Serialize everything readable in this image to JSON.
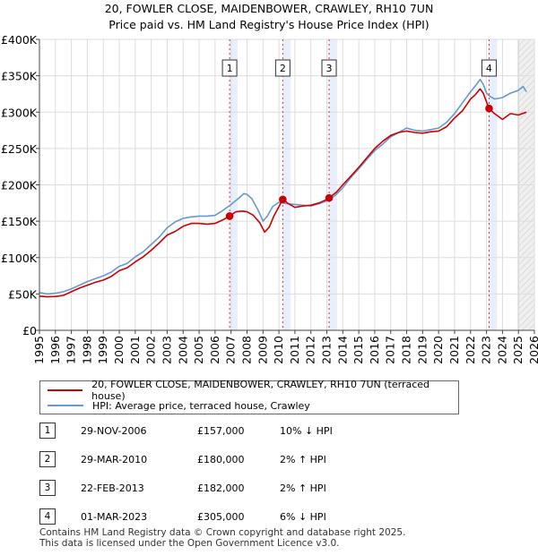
{
  "title_line1": "20, FOWLER CLOSE, MAIDENBOWER, CRAWLEY, RH10 7UN",
  "title_line2": "Price paid vs. HM Land Registry's House Price Index (HPI)",
  "colors": {
    "price": "#cc0000",
    "hpi": "#6699cc",
    "sale_band": "#e8eefc",
    "future": "#f0f0f0"
  },
  "chart_data": {
    "type": "line",
    "title": "20, FOWLER CLOSE, MAIDENBOWER, CRAWLEY, RH10 7UN",
    "subtitle": "Price paid vs. HM Land Registry's House Price Index (HPI)",
    "xlabel": "",
    "ylabel": "",
    "xlim": [
      1995,
      2026
    ],
    "ylim": [
      0,
      400000
    ],
    "x_ticks": [
      "1995",
      "1996",
      "1997",
      "1998",
      "1999",
      "2000",
      "2001",
      "2002",
      "2003",
      "2004",
      "2005",
      "2006",
      "2007",
      "2008",
      "2009",
      "2010",
      "2011",
      "2012",
      "2013",
      "2014",
      "2015",
      "2016",
      "2017",
      "2018",
      "2019",
      "2020",
      "2021",
      "2022",
      "2023",
      "2024",
      "2025",
      "2026"
    ],
    "y_ticks": [
      {
        "value": 0,
        "label": "£0"
      },
      {
        "value": 50000,
        "label": "£50K"
      },
      {
        "value": 100000,
        "label": "£100K"
      },
      {
        "value": 150000,
        "label": "£150K"
      },
      {
        "value": 200000,
        "label": "£200K"
      },
      {
        "value": 250000,
        "label": "£250K"
      },
      {
        "value": 300000,
        "label": "£300K"
      },
      {
        "value": 350000,
        "label": "£350K"
      },
      {
        "value": 400000,
        "label": "£400K"
      }
    ],
    "grid": true,
    "future_shade_from": 2025.0,
    "sale_band_width_years": 0.5,
    "series": [
      {
        "name": "20, FOWLER CLOSE, MAIDENBOWER, CRAWLEY, RH10 7UN (terraced house)",
        "color_key": "price",
        "x": [
          1995.0,
          1995.5,
          1996.0,
          1996.5,
          1997.0,
          1997.5,
          1998.0,
          1998.5,
          1999.0,
          1999.5,
          2000.0,
          2000.5,
          2001.0,
          2001.5,
          2002.0,
          2002.5,
          2003.0,
          2003.5,
          2004.0,
          2004.5,
          2005.0,
          2005.5,
          2006.0,
          2006.5,
          2006.91,
          2007.3,
          2007.7,
          2008.0,
          2008.4,
          2008.8,
          2009.1,
          2009.4,
          2009.7,
          2010.0,
          2010.24,
          2010.6,
          2011.0,
          2011.5,
          2012.0,
          2012.5,
          2013.0,
          2013.14,
          2013.6,
          2014.0,
          2014.5,
          2015.0,
          2015.5,
          2016.0,
          2016.5,
          2017.0,
          2017.5,
          2018.0,
          2018.5,
          2019.0,
          2019.5,
          2020.0,
          2020.5,
          2021.0,
          2021.5,
          2022.0,
          2022.3,
          2022.6,
          2022.8,
          2023.0,
          2023.16,
          2023.5,
          2024.0,
          2024.5,
          2025.0,
          2025.5
        ],
        "y": [
          47000,
          46000,
          46500,
          48000,
          53000,
          58000,
          62000,
          66000,
          69000,
          74000,
          82000,
          86000,
          94000,
          101000,
          110000,
          120000,
          131000,
          136000,
          143000,
          147000,
          147000,
          146000,
          147000,
          152000,
          157000,
          163000,
          164000,
          163000,
          158000,
          148000,
          135000,
          142000,
          158000,
          170000,
          180000,
          174000,
          169000,
          171000,
          172000,
          175000,
          180000,
          182000,
          190000,
          200000,
          212000,
          224000,
          237000,
          250000,
          260000,
          268000,
          272000,
          274000,
          272000,
          271000,
          273000,
          274000,
          280000,
          292000,
          302000,
          318000,
          324000,
          332000,
          326000,
          314000,
          305000,
          298000,
          290000,
          298000,
          296000,
          300000
        ]
      },
      {
        "name": "HPI: Average price, terraced house, Crawley",
        "color_key": "hpi",
        "x": [
          1995.0,
          1995.5,
          1996.0,
          1996.5,
          1997.0,
          1997.5,
          1998.0,
          1998.5,
          1999.0,
          1999.5,
          2000.0,
          2000.5,
          2001.0,
          2001.5,
          2002.0,
          2002.5,
          2003.0,
          2003.5,
          2004.0,
          2004.5,
          2005.0,
          2005.5,
          2006.0,
          2006.5,
          2007.0,
          2007.5,
          2007.8,
          2008.0,
          2008.3,
          2008.7,
          2009.0,
          2009.3,
          2009.6,
          2010.0,
          2010.5,
          2011.0,
          2011.5,
          2012.0,
          2012.5,
          2013.0,
          2013.5,
          2014.0,
          2014.5,
          2015.0,
          2015.5,
          2016.0,
          2016.5,
          2017.0,
          2017.5,
          2018.0,
          2018.5,
          2019.0,
          2019.5,
          2020.0,
          2020.5,
          2021.0,
          2021.5,
          2022.0,
          2022.3,
          2022.6,
          2022.8,
          2023.0,
          2023.2,
          2023.5,
          2024.0,
          2024.5,
          2025.0,
          2025.3,
          2025.5
        ],
        "y": [
          52000,
          50000,
          51000,
          53000,
          57000,
          62000,
          67000,
          71000,
          75000,
          80000,
          88000,
          92000,
          101000,
          108000,
          118000,
          128000,
          141000,
          149000,
          154000,
          156000,
          157000,
          157000,
          158000,
          165000,
          173000,
          182000,
          188000,
          187000,
          181000,
          165000,
          150000,
          158000,
          170000,
          176000,
          174000,
          173000,
          172000,
          171000,
          174000,
          178000,
          185000,
          196000,
          210000,
          222000,
          235000,
          247000,
          256000,
          266000,
          272000,
          278000,
          275000,
          274000,
          276000,
          278000,
          286000,
          298000,
          313000,
          328000,
          336000,
          345000,
          338000,
          326000,
          322000,
          318000,
          320000,
          326000,
          330000,
          335000,
          328000
        ]
      }
    ],
    "sales": [
      {
        "id": "1",
        "x": 2006.91,
        "y": 157000
      },
      {
        "id": "2",
        "x": 2010.24,
        "y": 180000
      },
      {
        "id": "3",
        "x": 2013.14,
        "y": 182000
      },
      {
        "id": "4",
        "x": 2023.16,
        "y": 305000
      }
    ]
  },
  "legend": {
    "price_label": "20, FOWLER CLOSE, MAIDENBOWER, CRAWLEY, RH10 7UN (terraced house)",
    "hpi_label": "HPI: Average price, terraced house, Crawley"
  },
  "sales_table": [
    {
      "badge": "1",
      "date": "29-NOV-2006",
      "price": "£157,000",
      "hpi": "10% ↓ HPI"
    },
    {
      "badge": "2",
      "date": "29-MAR-2010",
      "price": "£180,000",
      "hpi": "2% ↑ HPI"
    },
    {
      "badge": "3",
      "date": "22-FEB-2013",
      "price": "£182,000",
      "hpi": "2% ↑ HPI"
    },
    {
      "badge": "4",
      "date": "01-MAR-2023",
      "price": "£305,000",
      "hpi": "6% ↓ HPI"
    }
  ],
  "footer": {
    "line1": "Contains HM Land Registry data © Crown copyright and database right 2025.",
    "line2": "This data is licensed under the Open Government Licence v3.0."
  }
}
